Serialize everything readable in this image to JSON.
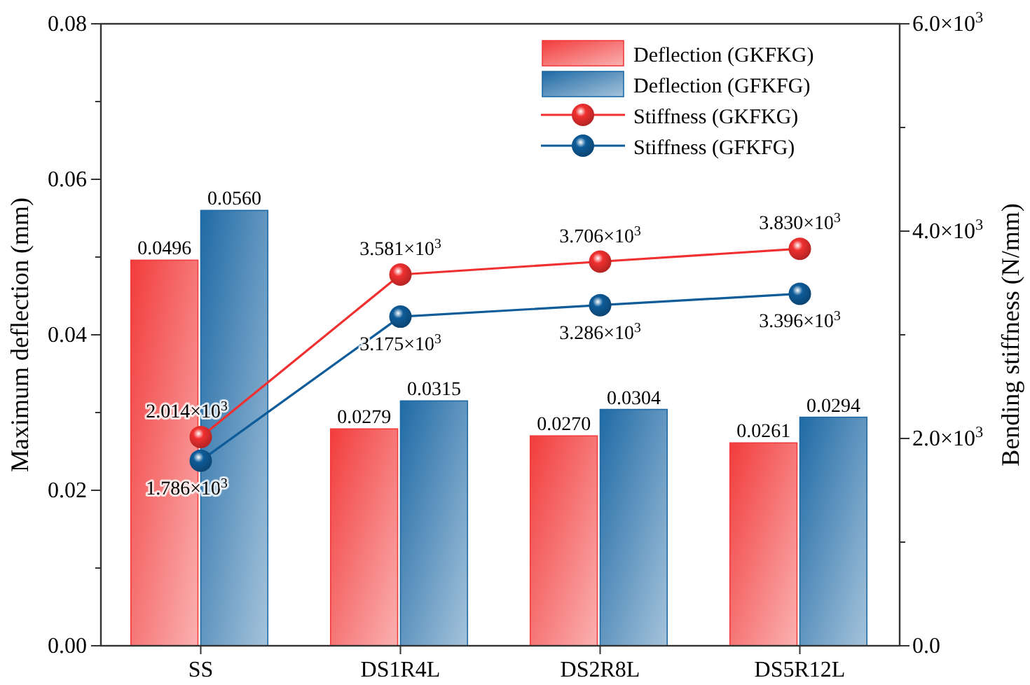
{
  "chart_data": {
    "type": "bar",
    "xlabel": null,
    "ylabel": "Maximum deflection (mm)",
    "y2label": "Bending stiffness (N/mm)",
    "categories": [
      "SS",
      "DS1R4L",
      "DS2R8L",
      "DS5R12L"
    ],
    "series": [
      {
        "name": "Deflection (GKFKG)",
        "color": "#f23c3c",
        "values": [
          0.0496,
          0.0279,
          0.027,
          0.0261
        ],
        "value_labels": [
          "0.0496",
          "0.0279",
          "0.0270",
          "0.0261"
        ]
      },
      {
        "name": "Deflection (GFKFG)",
        "color": "#1f6aa5",
        "values": [
          0.056,
          0.0315,
          0.0304,
          0.0294
        ],
        "value_labels": [
          "0.0560",
          "0.0315",
          "0.0304",
          "0.0294"
        ]
      },
      {
        "name": "Stiffness (GKFKG)",
        "type": "line",
        "axis": "y2",
        "color": "#f03030",
        "values": [
          2014,
          3581,
          3706,
          3830
        ],
        "value_labels": [
          "2.014×10$^{3}$",
          "3.581×10$^{3}$",
          "3.706×10$^{3}$",
          "3.830×10$^{3}$"
        ]
      },
      {
        "name": "Stiffness (GFKFG)",
        "type": "line",
        "axis": "y2",
        "color": "#0e5c99",
        "values": [
          1786,
          3175,
          3286,
          3396
        ],
        "value_labels": [
          "1.786×10$^{3}$",
          "3.175×10$^{3}$",
          "3.286×10$^{3}$",
          "3.396×10$^{3}$"
        ]
      }
    ],
    "ylim": [
      0,
      0.08
    ],
    "yticks": [
      "0.00",
      {
        "value": 0.01,
        "label": null
      },
      "0.02",
      {
        "value": 0.03,
        "label": null
      },
      "0.04",
      {
        "value": 0.05,
        "label": null
      },
      "0.06",
      {
        "value": 0.07,
        "label": null
      },
      "0.08"
    ],
    "y2lim": [
      0,
      6000
    ],
    "y2ticks": [
      {
        "value": 0,
        "label": "0.0"
      },
      {
        "value": 1000,
        "label": null
      },
      {
        "value": 2000,
        "label": "2.0×10$^{3}$"
      },
      {
        "value": 3000,
        "label": null
      },
      {
        "value": 4000,
        "label": "4.0×10$^{3}$"
      },
      {
        "value": 5000,
        "label": null
      },
      {
        "value": 6000,
        "label": "6.0×10$^{3}$"
      }
    ],
    "marker": "circle",
    "legend": "top right",
    "grid": false
  }
}
